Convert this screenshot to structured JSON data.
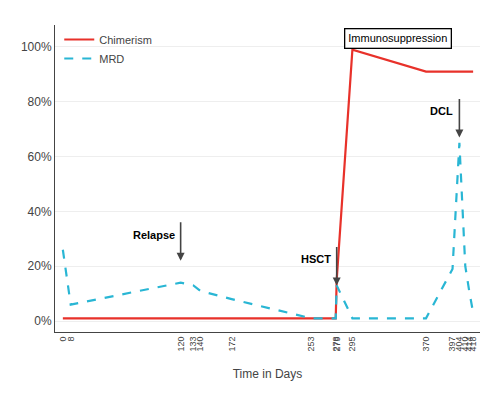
{
  "chart_data": {
    "type": "line",
    "xlabel": "Time in Days",
    "series": [
      {
        "name": "Chimerism",
        "color": "#e8312a",
        "line_style": "solid",
        "x": [
          0,
          120,
          253,
          278,
          279,
          295,
          370,
          397,
          404,
          410,
          414,
          418
        ],
        "values": [
          1,
          1,
          1,
          1,
          15,
          99,
          91,
          91,
          91,
          91,
          91,
          91
        ]
      },
      {
        "name": "MRD",
        "color": "#29b6d4",
        "line_style": "dashed",
        "x": [
          0,
          8,
          120,
          133,
          140,
          172,
          253,
          278,
          279,
          295,
          370,
          397,
          404,
          410,
          414,
          418
        ],
        "values": [
          26,
          6,
          14,
          13,
          11,
          8,
          1,
          1,
          13,
          1,
          1,
          19,
          65,
          20,
          11,
          3
        ]
      }
    ],
    "xlim": [
      -8,
      425
    ],
    "xticks": [
      0,
      8,
      120,
      133,
      140,
      172,
      253,
      278,
      279,
      295,
      370,
      397,
      404,
      410,
      414,
      418
    ],
    "ylim": [
      -4,
      108
    ],
    "yticks": [
      {
        "value": 0,
        "label": "0%"
      },
      {
        "value": 20,
        "label": "20%"
      },
      {
        "value": 40,
        "label": "40%"
      },
      {
        "value": 60,
        "label": "60%"
      },
      {
        "value": 80,
        "label": "80%"
      },
      {
        "value": 100,
        "label": "100%"
      }
    ],
    "grid": true,
    "legend": "upper left",
    "annotations": [
      {
        "text": "Immunosuppression",
        "x": 341.5,
        "y": 103
      },
      {
        "text": "Relapse",
        "x": 120,
        "y": 22,
        "arrow": true
      },
      {
        "text": "HSCT",
        "x": 279,
        "y": 13,
        "arrow": true
      },
      {
        "text": "DCL",
        "x": 404,
        "y": 67,
        "arrow": true
      }
    ]
  }
}
